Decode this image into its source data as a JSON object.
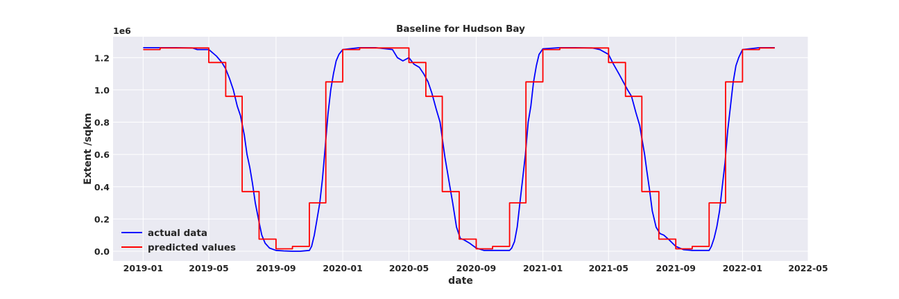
{
  "chart_data": {
    "type": "line",
    "title": "Baseline for Hudson Bay",
    "xlabel": "date",
    "ylabel": "Extent /sqkm",
    "y_offset_label": "1e6",
    "xlim": [
      "2018-11-07",
      "2022-05-01"
    ],
    "ylim": [
      -0.06,
      1.33
    ],
    "x_ticks": [
      "2019-01",
      "2019-05",
      "2019-09",
      "2020-01",
      "2020-05",
      "2020-09",
      "2021-01",
      "2021-05",
      "2021-09",
      "2022-01",
      "2022-05"
    ],
    "y_ticks": [
      0.0,
      0.2,
      0.4,
      0.6,
      0.8,
      1.0,
      1.2
    ],
    "y_tick_labels": [
      "0.0",
      "0.2",
      "0.4",
      "0.6",
      "0.8",
      "1.0",
      "1.2"
    ],
    "grid": true,
    "legend_position": "lower-left",
    "background_color": "#eaeaf2",
    "series": [
      {
        "name": "actual data",
        "color": "#0000ff",
        "points": [
          [
            "2019-01-01",
            1.262
          ],
          [
            "2019-02-01",
            1.262
          ],
          [
            "2019-03-01",
            1.262
          ],
          [
            "2019-04-01",
            1.26
          ],
          [
            "2019-04-10",
            1.25
          ],
          [
            "2019-04-20",
            1.25
          ],
          [
            "2019-05-01",
            1.25
          ],
          [
            "2019-05-15",
            1.21
          ],
          [
            "2019-05-25",
            1.17
          ],
          [
            "2019-06-01",
            1.13
          ],
          [
            "2019-06-08",
            1.07
          ],
          [
            "2019-06-15",
            1.0
          ],
          [
            "2019-06-22",
            0.9
          ],
          [
            "2019-06-28",
            0.84
          ],
          [
            "2019-07-05",
            0.72
          ],
          [
            "2019-07-10",
            0.6
          ],
          [
            "2019-07-15",
            0.52
          ],
          [
            "2019-07-20",
            0.42
          ],
          [
            "2019-07-25",
            0.3
          ],
          [
            "2019-08-01",
            0.18
          ],
          [
            "2019-08-06",
            0.1
          ],
          [
            "2019-08-12",
            0.05
          ],
          [
            "2019-08-20",
            0.02
          ],
          [
            "2019-09-01",
            0.005
          ],
          [
            "2019-09-15",
            0.002
          ],
          [
            "2019-10-01",
            0.0
          ],
          [
            "2019-10-15",
            0.0
          ],
          [
            "2019-11-01",
            0.005
          ],
          [
            "2019-11-05",
            0.03
          ],
          [
            "2019-11-10",
            0.1
          ],
          [
            "2019-11-15",
            0.2
          ],
          [
            "2019-11-20",
            0.3
          ],
          [
            "2019-11-25",
            0.45
          ],
          [
            "2019-11-30",
            0.65
          ],
          [
            "2019-12-05",
            0.85
          ],
          [
            "2019-12-10",
            1.0
          ],
          [
            "2019-12-15",
            1.1
          ],
          [
            "2019-12-20",
            1.18
          ],
          [
            "2019-12-25",
            1.22
          ],
          [
            "2020-01-01",
            1.25
          ],
          [
            "2020-02-01",
            1.262
          ],
          [
            "2020-03-01",
            1.262
          ],
          [
            "2020-04-01",
            1.25
          ],
          [
            "2020-04-10",
            1.2
          ],
          [
            "2020-04-20",
            1.18
          ],
          [
            "2020-05-01",
            1.2
          ],
          [
            "2020-05-10",
            1.16
          ],
          [
            "2020-05-20",
            1.14
          ],
          [
            "2020-05-28",
            1.1
          ],
          [
            "2020-06-05",
            1.05
          ],
          [
            "2020-06-12",
            0.98
          ],
          [
            "2020-06-20",
            0.88
          ],
          [
            "2020-06-27",
            0.8
          ],
          [
            "2020-07-01",
            0.7
          ],
          [
            "2020-07-06",
            0.58
          ],
          [
            "2020-07-10",
            0.5
          ],
          [
            "2020-07-15",
            0.4
          ],
          [
            "2020-07-20",
            0.3
          ],
          [
            "2020-07-27",
            0.15
          ],
          [
            "2020-08-03",
            0.08
          ],
          [
            "2020-08-10",
            0.07
          ],
          [
            "2020-08-20",
            0.05
          ],
          [
            "2020-09-01",
            0.02
          ],
          [
            "2020-09-15",
            0.005
          ],
          [
            "2020-10-01",
            0.005
          ],
          [
            "2020-10-15",
            0.005
          ],
          [
            "2020-11-01",
            0.005
          ],
          [
            "2020-11-05",
            0.02
          ],
          [
            "2020-11-10",
            0.06
          ],
          [
            "2020-11-15",
            0.15
          ],
          [
            "2020-11-20",
            0.3
          ],
          [
            "2020-11-25",
            0.45
          ],
          [
            "2020-11-30",
            0.6
          ],
          [
            "2020-12-05",
            0.8
          ],
          [
            "2020-12-10",
            0.9
          ],
          [
            "2020-12-15",
            1.05
          ],
          [
            "2020-12-20",
            1.15
          ],
          [
            "2020-12-25",
            1.22
          ],
          [
            "2021-01-01",
            1.255
          ],
          [
            "2021-02-01",
            1.262
          ],
          [
            "2021-03-01",
            1.262
          ],
          [
            "2021-04-01",
            1.26
          ],
          [
            "2021-04-15",
            1.25
          ],
          [
            "2021-05-01",
            1.22
          ],
          [
            "2021-05-10",
            1.16
          ],
          [
            "2021-05-20",
            1.1
          ],
          [
            "2021-05-28",
            1.05
          ],
          [
            "2021-06-05",
            1.0
          ],
          [
            "2021-06-12",
            0.96
          ],
          [
            "2021-06-20",
            0.86
          ],
          [
            "2021-06-27",
            0.78
          ],
          [
            "2021-07-01",
            0.7
          ],
          [
            "2021-07-06",
            0.6
          ],
          [
            "2021-07-10",
            0.5
          ],
          [
            "2021-07-15",
            0.38
          ],
          [
            "2021-07-20",
            0.25
          ],
          [
            "2021-07-27",
            0.15
          ],
          [
            "2021-08-03",
            0.11
          ],
          [
            "2021-08-10",
            0.1
          ],
          [
            "2021-08-20",
            0.07
          ],
          [
            "2021-09-01",
            0.03
          ],
          [
            "2021-09-15",
            0.01
          ],
          [
            "2021-10-01",
            0.005
          ],
          [
            "2021-10-15",
            0.005
          ],
          [
            "2021-11-01",
            0.005
          ],
          [
            "2021-11-05",
            0.03
          ],
          [
            "2021-11-10",
            0.08
          ],
          [
            "2021-11-15",
            0.15
          ],
          [
            "2021-11-20",
            0.25
          ],
          [
            "2021-11-25",
            0.4
          ],
          [
            "2021-11-30",
            0.55
          ],
          [
            "2021-12-05",
            0.75
          ],
          [
            "2021-12-10",
            0.9
          ],
          [
            "2021-12-15",
            1.05
          ],
          [
            "2021-12-20",
            1.15
          ],
          [
            "2021-12-25",
            1.2
          ],
          [
            "2022-01-01",
            1.25
          ],
          [
            "2022-02-01",
            1.262
          ],
          [
            "2022-03-01",
            1.262
          ]
        ]
      },
      {
        "name": "predicted values",
        "color": "#ff0000",
        "points": [
          [
            "2019-01-01",
            1.25
          ],
          [
            "2019-02-01",
            1.25
          ],
          [
            "2019-02-01",
            1.26
          ],
          [
            "2019-05-01",
            1.26
          ],
          [
            "2019-05-01",
            1.17
          ],
          [
            "2019-06-01",
            1.17
          ],
          [
            "2019-06-01",
            0.96
          ],
          [
            "2019-07-01",
            0.96
          ],
          [
            "2019-07-01",
            0.37
          ],
          [
            "2019-08-01",
            0.37
          ],
          [
            "2019-08-01",
            0.075
          ],
          [
            "2019-09-01",
            0.075
          ],
          [
            "2019-09-01",
            0.015
          ],
          [
            "2019-10-01",
            0.015
          ],
          [
            "2019-10-01",
            0.03
          ],
          [
            "2019-11-01",
            0.03
          ],
          [
            "2019-11-01",
            0.3
          ],
          [
            "2019-12-01",
            0.3
          ],
          [
            "2019-12-01",
            1.05
          ],
          [
            "2020-01-01",
            1.05
          ],
          [
            "2020-01-01",
            1.25
          ],
          [
            "2020-02-01",
            1.25
          ],
          [
            "2020-02-01",
            1.26
          ],
          [
            "2020-05-01",
            1.26
          ],
          [
            "2020-05-01",
            1.17
          ],
          [
            "2020-06-01",
            1.17
          ],
          [
            "2020-06-01",
            0.96
          ],
          [
            "2020-07-01",
            0.96
          ],
          [
            "2020-07-01",
            0.37
          ],
          [
            "2020-08-01",
            0.37
          ],
          [
            "2020-08-01",
            0.075
          ],
          [
            "2020-09-01",
            0.075
          ],
          [
            "2020-09-01",
            0.015
          ],
          [
            "2020-10-01",
            0.015
          ],
          [
            "2020-10-01",
            0.03
          ],
          [
            "2020-11-01",
            0.03
          ],
          [
            "2020-11-01",
            0.3
          ],
          [
            "2020-12-01",
            0.3
          ],
          [
            "2020-12-01",
            1.05
          ],
          [
            "2021-01-01",
            1.05
          ],
          [
            "2021-01-01",
            1.25
          ],
          [
            "2021-02-01",
            1.25
          ],
          [
            "2021-02-01",
            1.26
          ],
          [
            "2021-05-01",
            1.26
          ],
          [
            "2021-05-01",
            1.17
          ],
          [
            "2021-06-01",
            1.17
          ],
          [
            "2021-06-01",
            0.96
          ],
          [
            "2021-07-01",
            0.96
          ],
          [
            "2021-07-01",
            0.37
          ],
          [
            "2021-08-01",
            0.37
          ],
          [
            "2021-08-01",
            0.075
          ],
          [
            "2021-09-01",
            0.075
          ],
          [
            "2021-09-01",
            0.015
          ],
          [
            "2021-10-01",
            0.015
          ],
          [
            "2021-10-01",
            0.03
          ],
          [
            "2021-11-01",
            0.03
          ],
          [
            "2021-11-01",
            0.3
          ],
          [
            "2021-12-01",
            0.3
          ],
          [
            "2021-12-01",
            1.05
          ],
          [
            "2022-01-01",
            1.05
          ],
          [
            "2022-01-01",
            1.25
          ],
          [
            "2022-02-01",
            1.25
          ],
          [
            "2022-02-01",
            1.26
          ],
          [
            "2022-03-01",
            1.26
          ]
        ]
      }
    ]
  }
}
